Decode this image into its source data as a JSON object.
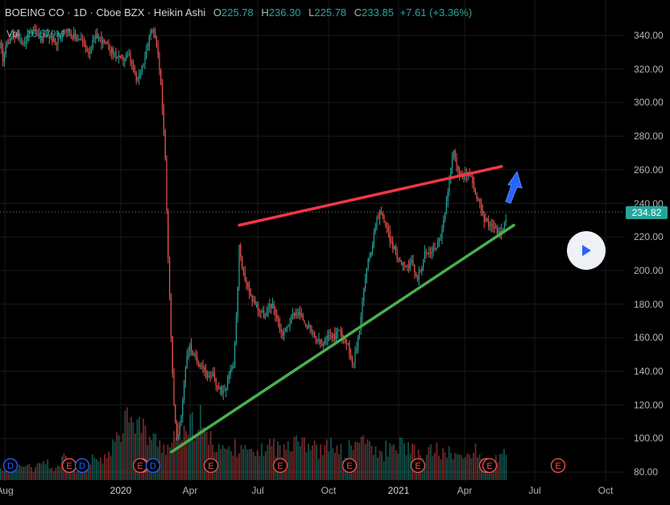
{
  "header": {
    "symbol": "BOEING CO · 1D · Cboe BZX · Heikin Ashi",
    "o_label": "O",
    "o_value": "225.78",
    "h_label": "H",
    "h_value": "236.30",
    "l_label": "L",
    "l_value": "225.78",
    "c_label": "C",
    "c_value": "233.85",
    "change": "+7.61 (+3.36%)"
  },
  "volume": {
    "label": "Vol",
    "value": "16.579M"
  },
  "last_price": "234.82",
  "colors": {
    "up": "#26a69a",
    "down": "#ef5350",
    "resistance": "#f23645",
    "support": "#4caf50",
    "arrow": "#2962ff",
    "grid": "#1a1a1a"
  },
  "chart_data": {
    "type": "candlestick",
    "style": "Heikin Ashi",
    "y_axis": {
      "ticks": [
        "340.00",
        "320.00",
        "300.00",
        "280.00",
        "260.00",
        "240.00",
        "220.00",
        "200.00",
        "180.00",
        "160.00",
        "140.00",
        "120.00",
        "100.00",
        "80.00"
      ],
      "range": [
        76,
        350
      ]
    },
    "x_axis": {
      "ticks": [
        {
          "label": "Aug",
          "strong": false
        },
        {
          "label": "2020",
          "strong": true
        },
        {
          "label": "Apr",
          "strong": false
        },
        {
          "label": "Jul",
          "strong": false
        },
        {
          "label": "Oct",
          "strong": false
        },
        {
          "label": "2021",
          "strong": true
        },
        {
          "label": "Apr",
          "strong": false
        },
        {
          "label": "Jul",
          "strong": false
        },
        {
          "label": "Oct",
          "strong": false
        }
      ]
    },
    "price_path": [
      [
        0,
        335
      ],
      [
        4,
        325
      ],
      [
        8,
        335
      ],
      [
        14,
        338
      ],
      [
        20,
        340
      ],
      [
        30,
        335
      ],
      [
        40,
        345
      ],
      [
        50,
        338
      ],
      [
        60,
        340
      ],
      [
        70,
        335
      ],
      [
        80,
        345
      ],
      [
        90,
        340
      ],
      [
        100,
        338
      ],
      [
        110,
        330
      ],
      [
        120,
        340
      ],
      [
        130,
        335
      ],
      [
        140,
        330
      ],
      [
        150,
        325
      ],
      [
        160,
        328
      ],
      [
        170,
        312
      ],
      [
        180,
        328
      ],
      [
        188,
        345
      ],
      [
        193,
        340
      ],
      [
        198,
        320
      ],
      [
        202,
        295
      ],
      [
        205,
        270
      ],
      [
        208,
        220
      ],
      [
        212,
        165
      ],
      [
        216,
        120
      ],
      [
        220,
        98
      ],
      [
        224,
        108
      ],
      [
        228,
        130
      ],
      [
        232,
        150
      ],
      [
        236,
        155
      ],
      [
        240,
        150
      ],
      [
        245,
        145
      ],
      [
        250,
        145
      ],
      [
        255,
        140
      ],
      [
        260,
        135
      ],
      [
        265,
        138
      ],
      [
        270,
        130
      ],
      [
        275,
        128
      ],
      [
        280,
        130
      ],
      [
        285,
        140
      ],
      [
        290,
        145
      ],
      [
        294,
        175
      ],
      [
        297,
        215
      ],
      [
        300,
        200
      ],
      [
        305,
        195
      ],
      [
        310,
        185
      ],
      [
        315,
        182
      ],
      [
        320,
        178
      ],
      [
        325,
        175
      ],
      [
        330,
        172
      ],
      [
        335,
        180
      ],
      [
        340,
        178
      ],
      [
        345,
        170
      ],
      [
        350,
        162
      ],
      [
        355,
        165
      ],
      [
        360,
        170
      ],
      [
        365,
        175
      ],
      [
        370,
        175
      ],
      [
        375,
        172
      ],
      [
        380,
        168
      ],
      [
        385,
        165
      ],
      [
        390,
        160
      ],
      [
        395,
        158
      ],
      [
        400,
        155
      ],
      [
        405,
        158
      ],
      [
        410,
        163
      ],
      [
        415,
        160
      ],
      [
        420,
        165
      ],
      [
        425,
        162
      ],
      [
        430,
        158
      ],
      [
        435,
        150
      ],
      [
        438,
        145
      ],
      [
        442,
        152
      ],
      [
        447,
        168
      ],
      [
        452,
        190
      ],
      [
        457,
        205
      ],
      [
        462,
        215
      ],
      [
        467,
        230
      ],
      [
        472,
        235
      ],
      [
        477,
        230
      ],
      [
        482,
        222
      ],
      [
        487,
        215
      ],
      [
        492,
        210
      ],
      [
        497,
        205
      ],
      [
        502,
        205
      ],
      [
        507,
        202
      ],
      [
        512,
        205
      ],
      [
        517,
        195
      ],
      [
        522,
        200
      ],
      [
        527,
        210
      ],
      [
        532,
        210
      ],
      [
        537,
        212
      ],
      [
        542,
        215
      ],
      [
        547,
        220
      ],
      [
        552,
        232
      ],
      [
        556,
        245
      ],
      [
        560,
        262
      ],
      [
        563,
        275
      ],
      [
        566,
        262
      ],
      [
        570,
        258
      ],
      [
        575,
        255
      ],
      [
        580,
        258
      ],
      [
        585,
        255
      ],
      [
        590,
        245
      ],
      [
        595,
        240
      ],
      [
        600,
        232
      ],
      [
        605,
        228
      ],
      [
        610,
        228
      ],
      [
        615,
        225
      ],
      [
        620,
        222
      ],
      [
        625,
        225
      ],
      [
        629,
        234
      ]
    ],
    "volume_pattern": [
      3,
      4,
      3,
      5,
      4,
      3,
      4,
      5,
      3,
      4,
      6,
      4,
      3,
      5,
      4,
      6,
      5,
      7,
      9,
      14,
      18,
      20,
      16,
      14,
      12,
      11,
      10,
      9,
      11,
      13,
      12,
      15,
      17,
      13,
      11,
      10,
      9,
      8,
      9,
      10,
      8,
      7,
      8,
      9,
      10,
      9,
      8,
      11,
      13,
      12,
      10,
      9,
      8,
      9,
      10,
      8,
      7,
      9,
      10,
      12,
      9,
      8,
      7,
      9,
      8,
      10,
      9,
      8,
      7,
      6,
      8,
      9,
      7,
      8,
      7,
      6,
      7,
      8,
      7,
      6,
      5,
      6,
      7
    ],
    "volume_x_range": [
      0,
      630
    ],
    "earnings_x": [
      13,
      86,
      102,
      176,
      190,
      262,
      348,
      434,
      519,
      604,
      608,
      693
    ],
    "dividend_x": [
      13,
      102,
      190
    ],
    "earnings_label": "E",
    "dividend_label": "D",
    "annotations": {
      "resistance_line": [
        [
          297,
          227
        ],
        [
          623,
          262
        ]
      ],
      "support_line": [
        [
          213,
          92
        ],
        [
          638,
          227
        ]
      ],
      "arrow_from": [
        630,
        243
      ]
    }
  }
}
